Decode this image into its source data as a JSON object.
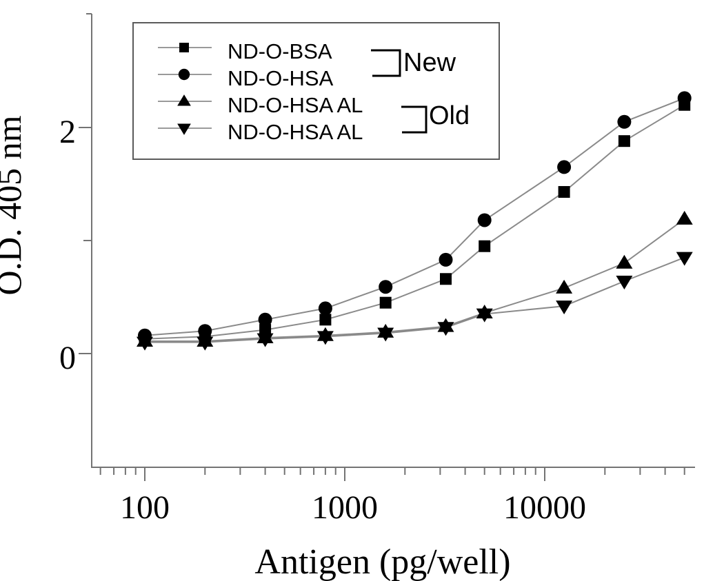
{
  "chart_data": {
    "type": "line",
    "title": "",
    "xlabel": "Antigen (pg/well)",
    "ylabel": "O.D. 405 nm",
    "x_scale": "log",
    "xlim": [
      54,
      56500
    ],
    "ylim": [
      -1,
      3
    ],
    "grid": false,
    "legend_position": "top-left",
    "x_tick_labels": [
      "100",
      "1000",
      "10000"
    ],
    "x_ticks_major": [
      100,
      1000,
      10000
    ],
    "x_ticks_minor": [
      60,
      70,
      80,
      90,
      200,
      300,
      400,
      500,
      600,
      700,
      800,
      900,
      2000,
      3000,
      4000,
      5000,
      6000,
      7000,
      8000,
      9000,
      20000,
      30000,
      40000,
      50000
    ],
    "y_tick_labels": [
      "0",
      "2"
    ],
    "y_ticks_major": [
      0,
      2
    ],
    "y_ticks_minor": [
      1
    ],
    "x": [
      100,
      200,
      400,
      800,
      1600,
      3200,
      5000,
      12500,
      25000,
      50000
    ],
    "series": [
      {
        "name": "ND-O-BSA",
        "marker": "square",
        "group": "New",
        "values": [
          0.13,
          0.15,
          0.21,
          0.3,
          0.45,
          0.66,
          0.95,
          1.43,
          1.88,
          2.2
        ]
      },
      {
        "name": "ND-O-HSA",
        "marker": "circle",
        "group": "New",
        "values": [
          0.16,
          0.2,
          0.3,
          0.4,
          0.59,
          0.83,
          1.18,
          1.65,
          2.05,
          2.26
        ]
      },
      {
        "name": "ND-O-HSA AL",
        "marker": "triangle-up",
        "group": "Old",
        "values": [
          0.11,
          0.11,
          0.14,
          0.16,
          0.19,
          0.24,
          0.36,
          0.58,
          0.8,
          1.19
        ]
      },
      {
        "name": "ND-O-HSA AL",
        "marker": "triangle-down",
        "group": "Old",
        "values": [
          0.1,
          0.1,
          0.13,
          0.15,
          0.18,
          0.23,
          0.35,
          0.42,
          0.64,
          0.85
        ]
      }
    ],
    "legend_groups": [
      {
        "label": "New",
        "members": [
          "ND-O-BSA",
          "ND-O-HSA"
        ]
      },
      {
        "label": "Old",
        "members": [
          "ND-O-HSA AL",
          "ND-O-HSA AL"
        ]
      }
    ],
    "colors": {
      "marker": "#000000",
      "series_line": "#8a8a8a",
      "axis": "#737373",
      "text": "#000000",
      "legend_border": "#5a5a5a",
      "legend_sample_line": "#9a9a9a",
      "bracket": "#000000",
      "background": "#ffffff"
    }
  }
}
